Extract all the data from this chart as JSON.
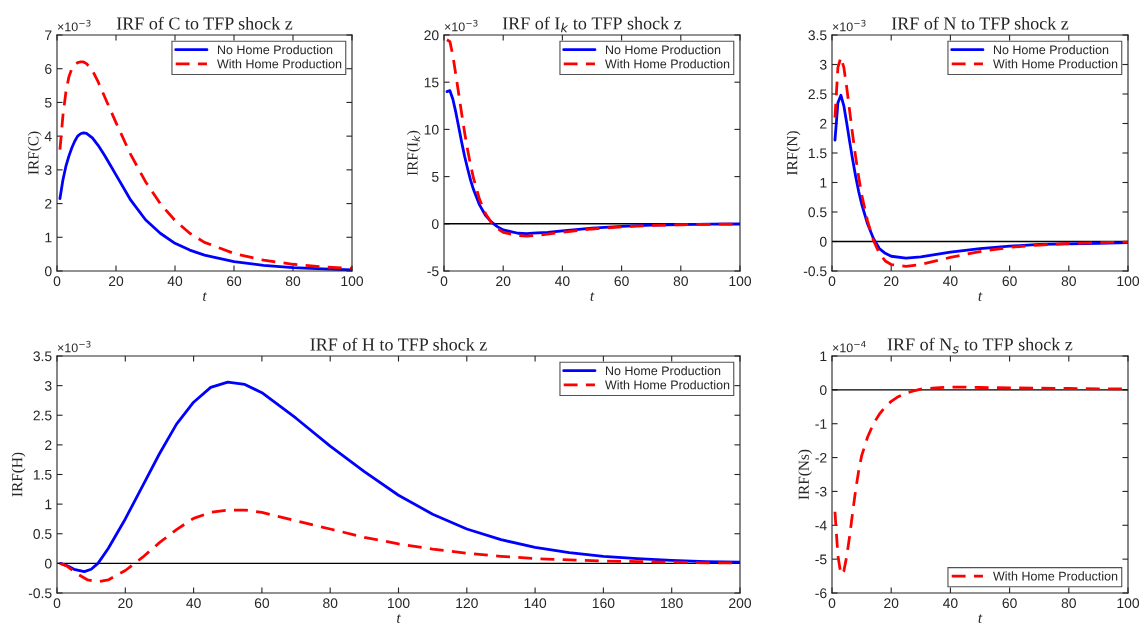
{
  "chart_data": [
    {
      "type": "line",
      "title": "IRF of C to TFP shock z",
      "xlabel": "t",
      "ylabel": "IRF(C)",
      "annotations": [
        "×10$^{−3}$"
      ],
      "xlim": [
        0,
        100
      ],
      "xticks": [
        0,
        20,
        40,
        60,
        80,
        100
      ],
      "ylim": [
        0,
        7
      ],
      "yticks": [
        0,
        1,
        2,
        3,
        4,
        5,
        6,
        7
      ],
      "grid": false,
      "legend": "top right",
      "series": [
        {
          "name": "No Home Production",
          "color": "#0000ff",
          "line_style": "solid",
          "x": [
            1,
            2,
            3,
            4,
            5,
            6,
            7,
            8,
            9,
            10,
            12,
            14,
            16,
            18,
            20,
            25,
            30,
            35,
            40,
            45,
            50,
            60,
            70,
            80,
            90,
            100
          ],
          "values": [
            2.15,
            2.7,
            3.1,
            3.4,
            3.65,
            3.85,
            4.0,
            4.07,
            4.1,
            4.08,
            3.95,
            3.72,
            3.45,
            3.15,
            2.85,
            2.1,
            1.52,
            1.12,
            0.82,
            0.62,
            0.47,
            0.28,
            0.17,
            0.1,
            0.06,
            0.03
          ]
        },
        {
          "name": "With Home Production",
          "color": "#ff0000",
          "line_style": "dashed",
          "x": [
            1,
            2,
            3,
            4,
            5,
            6,
            7,
            8,
            9,
            10,
            12,
            14,
            16,
            18,
            20,
            25,
            30,
            35,
            40,
            45,
            50,
            60,
            70,
            80,
            90,
            100
          ],
          "values": [
            3.6,
            4.6,
            5.3,
            5.75,
            6.0,
            6.12,
            6.18,
            6.2,
            6.2,
            6.15,
            5.95,
            5.6,
            5.2,
            4.8,
            4.4,
            3.45,
            2.65,
            2.0,
            1.5,
            1.12,
            0.85,
            0.52,
            0.32,
            0.2,
            0.12,
            0.08
          ]
        }
      ]
    },
    {
      "type": "line",
      "title": "IRF of I$_{k}$ to TFP shock z",
      "xlabel": "t",
      "ylabel": "IRF(I$_{k}$)",
      "annotations": [
        "×10$^{−3}$"
      ],
      "xlim": [
        0,
        100
      ],
      "xticks": [
        0,
        20,
        40,
        60,
        80,
        100
      ],
      "ylim": [
        -5,
        20
      ],
      "yticks": [
        -5,
        0,
        5,
        10,
        15,
        20
      ],
      "grid": false,
      "legend": "top right",
      "ref_lines": [
        {
          "axis": "y",
          "value": 0,
          "color": "#000000"
        }
      ],
      "series": [
        {
          "name": "No Home Production",
          "color": "#0000ff",
          "line_style": "solid",
          "x": [
            1,
            2,
            3,
            4,
            5,
            6,
            7,
            8,
            9,
            10,
            12,
            14,
            16,
            18,
            20,
            25,
            28,
            30,
            35,
            40,
            50,
            60,
            70,
            80,
            90,
            100
          ],
          "values": [
            14,
            14.1,
            13.2,
            11.8,
            10.2,
            8.6,
            7.1,
            5.8,
            4.6,
            3.6,
            2.0,
            0.9,
            0.2,
            -0.3,
            -0.65,
            -1.0,
            -1.05,
            -1.0,
            -0.9,
            -0.75,
            -0.45,
            -0.27,
            -0.15,
            -0.08,
            -0.04,
            -0.02
          ]
        },
        {
          "name": "With Home Production",
          "color": "#ff0000",
          "line_style": "dashed",
          "x": [
            1,
            2,
            3,
            4,
            5,
            6,
            7,
            8,
            9,
            10,
            12,
            14,
            16,
            18,
            20,
            25,
            28,
            30,
            35,
            40,
            50,
            60,
            70,
            80,
            90,
            100
          ],
          "values": [
            19.5,
            19.3,
            17.8,
            15.8,
            13.7,
            11.6,
            9.6,
            7.8,
            6.2,
            4.8,
            2.6,
            1.1,
            0.1,
            -0.5,
            -0.9,
            -1.25,
            -1.3,
            -1.25,
            -1.1,
            -0.9,
            -0.55,
            -0.32,
            -0.18,
            -0.1,
            -0.05,
            -0.02
          ]
        }
      ]
    },
    {
      "type": "line",
      "title": "IRF of N to TFP shock z",
      "xlabel": "t",
      "ylabel": "IRF(N)",
      "annotations": [
        "×10$^{−3}$"
      ],
      "xlim": [
        0,
        100
      ],
      "xticks": [
        0,
        20,
        40,
        60,
        80,
        100
      ],
      "ylim": [
        -0.5,
        3.5
      ],
      "yticks": [
        -0.5,
        0,
        0.5,
        1,
        1.5,
        2,
        2.5,
        3,
        3.5
      ],
      "grid": false,
      "legend": "top right",
      "ref_lines": [
        {
          "axis": "y",
          "value": 0,
          "color": "#000000"
        }
      ],
      "series": [
        {
          "name": "No Home Production",
          "color": "#0000ff",
          "line_style": "solid",
          "x": [
            1,
            2,
            3,
            4,
            5,
            6,
            7,
            8,
            9,
            10,
            12,
            14,
            16,
            18,
            20,
            25,
            30,
            40,
            50,
            60,
            70,
            80,
            90,
            100
          ],
          "values": [
            1.72,
            2.35,
            2.48,
            2.3,
            2.0,
            1.68,
            1.38,
            1.1,
            0.85,
            0.64,
            0.3,
            0.05,
            -0.12,
            -0.2,
            -0.25,
            -0.28,
            -0.26,
            -0.18,
            -0.12,
            -0.08,
            -0.05,
            -0.04,
            -0.03,
            -0.02
          ]
        },
        {
          "name": "With Home Production",
          "color": "#ff0000",
          "line_style": "dashed",
          "x": [
            1,
            2,
            3,
            4,
            5,
            6,
            7,
            8,
            9,
            10,
            12,
            14,
            16,
            18,
            20,
            25,
            30,
            40,
            50,
            60,
            70,
            80,
            90,
            100
          ],
          "values": [
            2.1,
            2.95,
            3.12,
            2.95,
            2.6,
            2.2,
            1.8,
            1.43,
            1.1,
            0.8,
            0.35,
            0.02,
            -0.2,
            -0.33,
            -0.39,
            -0.42,
            -0.39,
            -0.27,
            -0.17,
            -0.1,
            -0.06,
            -0.03,
            -0.02,
            -0.01
          ]
        }
      ]
    },
    {
      "type": "line",
      "title": "IRF of H to TFP shock z",
      "xlabel": "t",
      "ylabel": "IRF(H)",
      "annotations": [
        "×10$^{−3}$"
      ],
      "xlim": [
        0,
        200
      ],
      "xticks": [
        0,
        20,
        40,
        60,
        80,
        100,
        120,
        140,
        160,
        180,
        200
      ],
      "ylim": [
        -0.5,
        3.5
      ],
      "yticks": [
        -0.5,
        0,
        0.5,
        1,
        1.5,
        2,
        2.5,
        3,
        3.5
      ],
      "grid": false,
      "legend": "top right",
      "ref_lines": [
        {
          "axis": "y",
          "value": 0,
          "color": "#000000"
        }
      ],
      "series": [
        {
          "name": "No Home Production",
          "color": "#0000ff",
          "line_style": "solid",
          "x": [
            1,
            3,
            5,
            8,
            10,
            12,
            15,
            20,
            25,
            30,
            35,
            40,
            45,
            50,
            55,
            60,
            70,
            80,
            90,
            100,
            110,
            120,
            130,
            140,
            150,
            160,
            170,
            180,
            190,
            200
          ],
          "values": [
            0,
            -0.04,
            -0.1,
            -0.14,
            -0.1,
            0.0,
            0.25,
            0.75,
            1.3,
            1.85,
            2.35,
            2.72,
            2.97,
            3.06,
            3.02,
            2.88,
            2.45,
            1.98,
            1.55,
            1.15,
            0.83,
            0.58,
            0.4,
            0.27,
            0.18,
            0.12,
            0.08,
            0.05,
            0.03,
            0.02
          ]
        },
        {
          "name": "With Home Production",
          "color": "#ff0000",
          "line_style": "dashed",
          "x": [
            1,
            3,
            6,
            9,
            12,
            15,
            20,
            25,
            30,
            35,
            40,
            45,
            50,
            55,
            60,
            70,
            80,
            90,
            100,
            110,
            120,
            130,
            140,
            150,
            160,
            170,
            180,
            190,
            200
          ],
          "values": [
            0,
            -0.05,
            -0.18,
            -0.28,
            -0.31,
            -0.28,
            -0.12,
            0.1,
            0.35,
            0.57,
            0.76,
            0.86,
            0.9,
            0.9,
            0.86,
            0.72,
            0.58,
            0.44,
            0.33,
            0.24,
            0.17,
            0.12,
            0.08,
            0.06,
            0.04,
            0.03,
            0.02,
            0.01,
            0.01
          ]
        }
      ]
    },
    {
      "type": "line",
      "title": "IRF of N$_{s}$ to TFP shock z",
      "xlabel": "t",
      "ylabel": "IRF(Ns)",
      "annotations": [
        "×10$^{−4}$"
      ],
      "xlim": [
        0,
        100
      ],
      "xticks": [
        0,
        20,
        40,
        60,
        80,
        100
      ],
      "ylim": [
        -6,
        1
      ],
      "yticks": [
        -6,
        -5,
        -4,
        -3,
        -2,
        -1,
        0,
        1
      ],
      "grid": false,
      "legend": "bottom right",
      "ref_lines": [
        {
          "axis": "y",
          "value": 0,
          "color": "#000000"
        }
      ],
      "series": [
        {
          "name": "With Home Production",
          "color": "#ff0000",
          "line_style": "dashed",
          "x": [
            1,
            2,
            3,
            4,
            5,
            6,
            7,
            8,
            9,
            10,
            12,
            14,
            16,
            18,
            20,
            22,
            25,
            28,
            30,
            35,
            40,
            45,
            50,
            60,
            70,
            80,
            90,
            100
          ],
          "values": [
            -3.6,
            -4.9,
            -5.45,
            -5.35,
            -4.9,
            -4.3,
            -3.6,
            -2.95,
            -2.4,
            -1.95,
            -1.4,
            -1.0,
            -0.72,
            -0.5,
            -0.34,
            -0.22,
            -0.1,
            -0.02,
            0.02,
            0.06,
            0.08,
            0.08,
            0.07,
            0.06,
            0.05,
            0.04,
            0.03,
            0.03
          ]
        }
      ]
    }
  ]
}
